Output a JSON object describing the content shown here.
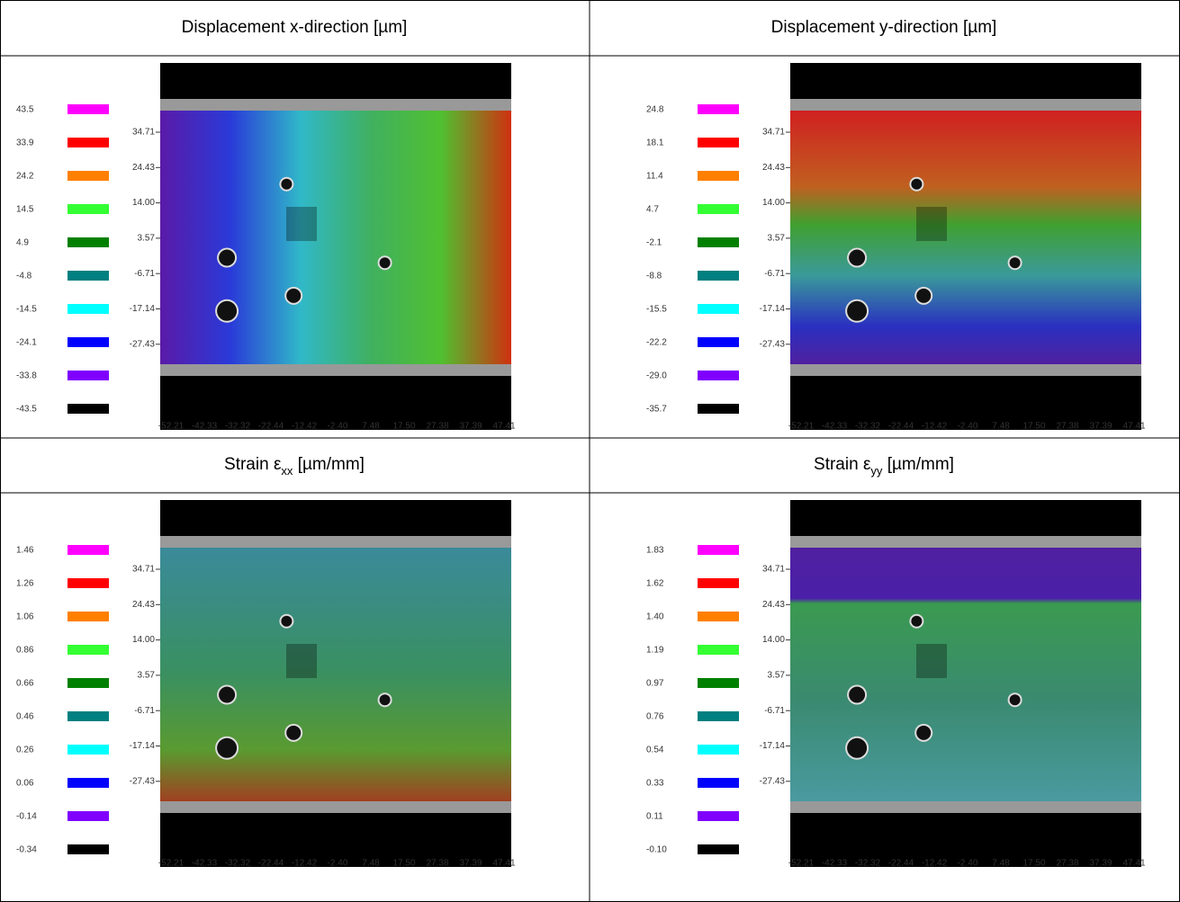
{
  "legend_colors": [
    "#ff00ff",
    "#ff0000",
    "#ff8000",
    "#33ff33",
    "#008000",
    "#008080",
    "#00ffff",
    "#0000ff",
    "#8000ff",
    "#000000"
  ],
  "panels": [
    {
      "title": [
        "Displacement x-direction [µm]"
      ],
      "legend": [
        "43.5",
        "33.9",
        "24.2",
        "14.5",
        "4.9",
        "-4.8",
        "-14.5",
        "-24.1",
        "-33.8",
        "-43.5"
      ],
      "yticks": [
        "34.71",
        "24.43",
        "14.00",
        "3.57",
        "-6.71",
        "-17.14",
        "-27.43"
      ],
      "xticks": [
        "-52.21",
        "-42.33",
        "-32.32",
        "-22.44",
        "-12.42",
        "-2.40",
        "7.48",
        "17.50",
        "27.38",
        "37.39",
        "47.41"
      ]
    },
    {
      "title": [
        "Displacement y-direction [µm]"
      ],
      "legend": [
        "24.8",
        "18.1",
        "11.4",
        "4.7",
        "-2.1",
        "-8.8",
        "-15.5",
        "-22.2",
        "-29.0",
        "-35.7"
      ],
      "yticks": [
        "34.71",
        "24.43",
        "14.00",
        "3.57",
        "-6.71",
        "-17.14",
        "-27.43"
      ],
      "xticks": [
        "-52.21",
        "-42.33",
        "-32.32",
        "-22.44",
        "-12.42",
        "-2.40",
        "7.48",
        "17.50",
        "27.38",
        "37.39",
        "47.41"
      ]
    },
    {
      "title": [
        "Strain ε",
        "xx",
        " [µm/mm]"
      ],
      "legend": [
        "1.46",
        "1.26",
        "1.06",
        "0.86",
        "0.66",
        "0.46",
        "0.26",
        "0.06",
        "-0.14",
        "-0.34"
      ],
      "yticks": [
        "34.71",
        "24.43",
        "14.00",
        "3.57",
        "-6.71",
        "-17.14",
        "-27.43"
      ],
      "xticks": [
        "-52.21",
        "-42.33",
        "-32.32",
        "-22.44",
        "-12.42",
        "-2.40",
        "7.48",
        "17.50",
        "27.38",
        "37.39",
        "47.41"
      ]
    },
    {
      "title": [
        "Strain ε",
        "yy",
        " [µm/mm]"
      ],
      "legend": [
        "1.83",
        "1.62",
        "1.40",
        "1.19",
        "0.97",
        "0.76",
        "0.54",
        "0.33",
        "0.11",
        "-0.10"
      ],
      "yticks": [
        "34.71",
        "24.43",
        "14.00",
        "3.57",
        "-6.71",
        "-17.14",
        "-27.43"
      ],
      "xticks": [
        "-52.21",
        "-42.33",
        "-32.32",
        "-22.44",
        "-12.42",
        "-2.40",
        "7.48",
        "17.50",
        "27.38",
        "37.39",
        "47.41"
      ]
    }
  ]
}
